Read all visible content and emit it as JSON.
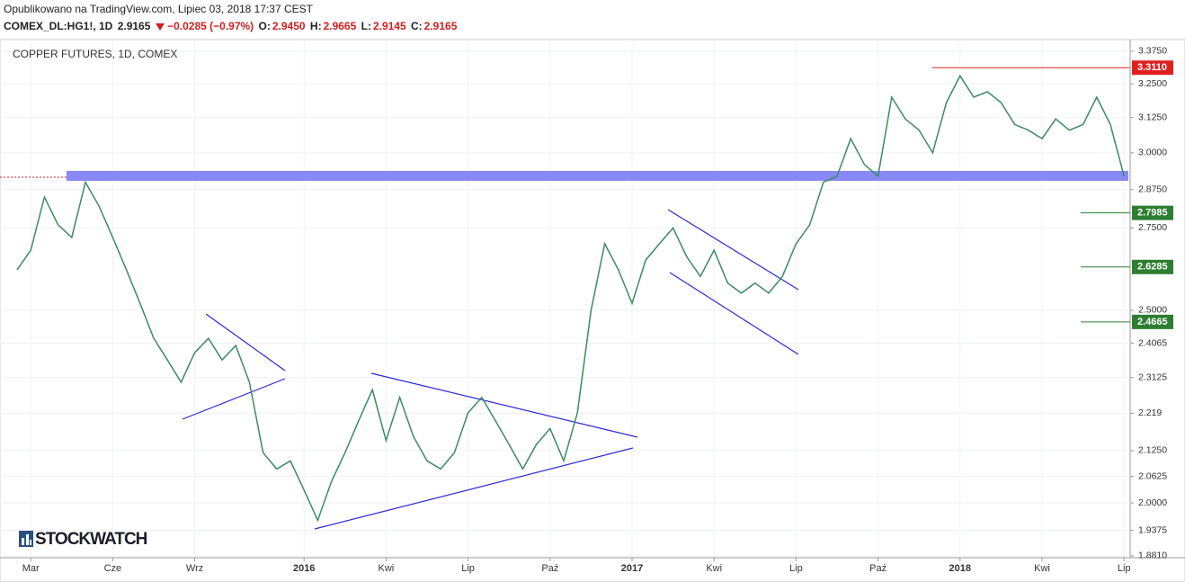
{
  "header": {
    "published": "Opublikowano na TradingView.com, Lipiec 03, 2018 17:37 CEST",
    "symbol": "COMEX_DL:HG1!, 1D",
    "last": "2.9165",
    "change": "−0.0285 (−0.97%)",
    "o_label": "O:",
    "o": "2.9450",
    "h_label": "H:",
    "h": "2.9665",
    "l_label": "L:",
    "l": "2.9145",
    "c_label": "C:",
    "c": "2.9165"
  },
  "logo": "STOCKWATCH",
  "chart_data": {
    "type": "line",
    "title": "COPPER FUTURES, 1D, COMEX",
    "color": "#3c8a63",
    "log_scale": true,
    "grid": true,
    "categories": [
      null,
      "Mar",
      null,
      null,
      null,
      null,
      null,
      "Cze",
      null,
      null,
      null,
      null,
      null,
      "Wrz",
      null,
      null,
      null,
      null,
      null,
      null,
      null,
      "2016",
      null,
      null,
      null,
      null,
      null,
      "Kwi",
      null,
      null,
      null,
      null,
      null,
      "Lip",
      null,
      null,
      null,
      null,
      null,
      "Paź",
      null,
      null,
      null,
      null,
      null,
      "2017",
      null,
      null,
      null,
      null,
      null,
      "Kwi",
      null,
      null,
      null,
      null,
      null,
      "Lip",
      null,
      null,
      null,
      null,
      null,
      "Paź",
      null,
      null,
      null,
      null,
      null,
      "2018",
      null,
      null,
      null,
      null,
      null,
      "Kwi",
      null,
      null,
      null,
      null,
      null,
      "Lip"
    ],
    "values": [
      2.62,
      2.68,
      2.85,
      2.76,
      2.72,
      2.9,
      2.82,
      2.72,
      2.62,
      2.52,
      2.42,
      2.36,
      2.3,
      2.38,
      2.42,
      2.36,
      2.4,
      2.3,
      2.12,
      2.08,
      2.1,
      2.03,
      1.96,
      2.05,
      2.12,
      2.2,
      2.28,
      2.15,
      2.26,
      2.16,
      2.1,
      2.08,
      2.12,
      2.22,
      2.26,
      2.2,
      2.14,
      2.08,
      2.14,
      2.18,
      2.1,
      2.22,
      2.5,
      2.7,
      2.62,
      2.52,
      2.65,
      2.7,
      2.75,
      2.66,
      2.6,
      2.68,
      2.58,
      2.55,
      2.58,
      2.55,
      2.6,
      2.7,
      2.76,
      2.9,
      2.92,
      3.05,
      2.96,
      2.92,
      3.2,
      3.12,
      3.08,
      3.0,
      3.18,
      3.28,
      3.2,
      3.22,
      3.18,
      3.1,
      3.08,
      3.05,
      3.12,
      3.08,
      3.1,
      3.2,
      3.1,
      2.92
    ],
    "ylim": [
      1.877,
      3.417
    ],
    "yticks": [
      {
        "value": 3.375,
        "label": "3.3750"
      },
      {
        "value": 3.25,
        "label": "3.2500"
      },
      {
        "value": 3.125,
        "label": "3.1250"
      },
      {
        "value": 3.0,
        "label": "3.0000"
      },
      {
        "value": 2.875,
        "label": "2.8750"
      },
      {
        "value": 2.75,
        "label": "2.7500"
      },
      {
        "value": 2.5,
        "label": "2.5000"
      },
      2.4065,
      2.3125,
      2.219,
      {
        "value": 2.125,
        "label": "2.1250"
      },
      2.0625,
      {
        "value": 2.0,
        "label": "2.0000"
      },
      1.9375,
      {
        "value": 1.881,
        "label": "1.8810"
      }
    ],
    "price_levels": [
      {
        "value": 3.311,
        "label": "3.3110",
        "color": "#e0201f"
      },
      {
        "value": 2.7985,
        "label": "2.7985",
        "color": "#2e7d32"
      },
      {
        "value": 2.6285,
        "label": "2.6285",
        "color": "#2e7d32"
      },
      {
        "value": 2.4665,
        "label": "2.4665",
        "color": "#2e7d32"
      }
    ]
  }
}
